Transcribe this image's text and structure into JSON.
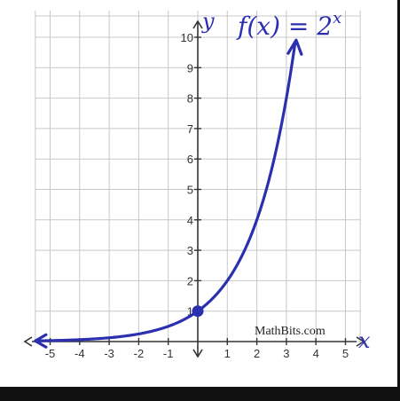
{
  "chart_data": {
    "type": "line",
    "function_label": {
      "base": "f(x) = 2",
      "exponent": "x"
    },
    "xlabel": "x",
    "ylabel": "y",
    "xlim": [
      -5,
      5
    ],
    "ylim": [
      0,
      10
    ],
    "x_ticks": [
      "-5",
      "-4",
      "-3",
      "-2",
      "-1",
      "1",
      "2",
      "3",
      "4",
      "5"
    ],
    "y_ticks": [
      "1",
      "2",
      "3",
      "4",
      "5",
      "6",
      "7",
      "8",
      "9",
      "10"
    ],
    "grid": true,
    "series": [
      {
        "base": 2,
        "x": [
          -5,
          -4.5,
          -4,
          -3.5,
          -3,
          -2.5,
          -2,
          -1.5,
          -1,
          -0.5,
          0,
          0.5,
          1,
          1.5,
          2,
          2.5,
          3,
          3.3
        ],
        "y": [
          0.031,
          0.044,
          0.063,
          0.088,
          0.125,
          0.177,
          0.25,
          0.354,
          0.5,
          0.707,
          1,
          1.414,
          2,
          2.828,
          4,
          5.657,
          8,
          9.85
        ]
      }
    ],
    "highlight_point": {
      "x": 0,
      "y": 1
    },
    "credit": "MathBits.com",
    "colors": {
      "curve": "#2b2fb0",
      "grid": "#c8c8c8",
      "axis": "#333333"
    }
  }
}
